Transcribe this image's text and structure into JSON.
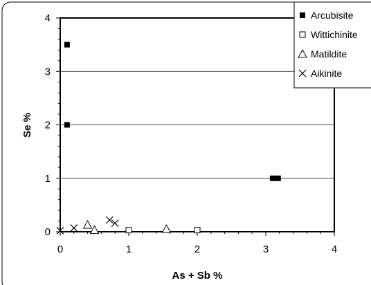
{
  "chart_data": {
    "type": "scatter",
    "title": "",
    "xlabel": "As + Sb %",
    "ylabel": "Se %",
    "xlim": [
      0,
      4
    ],
    "ylim": [
      0,
      4
    ],
    "xticks": [
      0,
      1,
      2,
      3,
      4
    ],
    "yticks": [
      0,
      1,
      2,
      3,
      4
    ],
    "xtick_labels": [
      "0",
      "1",
      "2",
      "3",
      "4"
    ],
    "ytick_labels": [
      "0",
      "1",
      "2",
      "3",
      "4"
    ],
    "grid": "horizontal major lines",
    "legend_position": "top-right",
    "series": [
      {
        "name": "Arcubisite",
        "marker": "filled-square",
        "color": "#000000",
        "points": [
          {
            "x": 0.1,
            "y": 3.5
          },
          {
            "x": 0.1,
            "y": 2.0
          },
          {
            "x": 3.1,
            "y": 1.0
          },
          {
            "x": 3.18,
            "y": 1.0
          }
        ]
      },
      {
        "name": "Wittichinite",
        "marker": "open-square",
        "color": "#000000",
        "points": [
          {
            "x": 1.0,
            "y": 0.03
          },
          {
            "x": 2.0,
            "y": 0.03
          }
        ]
      },
      {
        "name": "Matildite",
        "marker": "open-triangle",
        "color": "#000000",
        "points": [
          {
            "x": 0.4,
            "y": 0.13
          },
          {
            "x": 0.5,
            "y": 0.03
          },
          {
            "x": 1.55,
            "y": 0.05
          }
        ]
      },
      {
        "name": "Aikinite",
        "marker": "x-cross",
        "color": "#000000",
        "points": [
          {
            "x": 0.0,
            "y": 0.02
          },
          {
            "x": 0.2,
            "y": 0.07
          },
          {
            "x": 0.72,
            "y": 0.22
          },
          {
            "x": 0.8,
            "y": 0.16
          }
        ]
      }
    ]
  }
}
